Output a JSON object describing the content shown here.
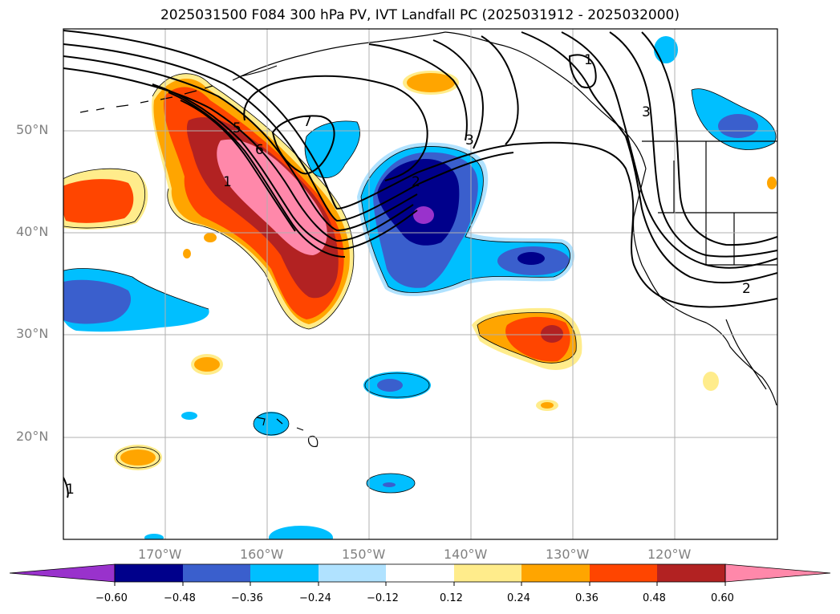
{
  "title": "2025031500 F084 300 hPa PV, IVT Landfall PC (2025031912 - 2025032000)",
  "latitude_labels": [
    "50°N",
    "40°N",
    "30°N",
    "20°N"
  ],
  "longitude_labels": [
    "170°W",
    "160°W",
    "150°W",
    "140°W",
    "130°W",
    "120°W"
  ],
  "colorbar": {
    "ticks": [
      "−0.60",
      "−0.48",
      "−0.36",
      "−0.24",
      "−0.12",
      "0.12",
      "0.24",
      "0.36",
      "0.48",
      "0.60"
    ],
    "colors": [
      "#9932cc",
      "#00008b",
      "#3a5fcd",
      "#00bfff",
      "#b0e2ff",
      "#ffffff",
      "#ffec8b",
      "#ffa500",
      "#ff4500",
      "#b22222",
      "#ff88aa"
    ]
  },
  "contour_labels": [
    "7",
    "5",
    "6",
    "1",
    "2",
    "3",
    "1",
    "3",
    "2",
    "1"
  ]
}
